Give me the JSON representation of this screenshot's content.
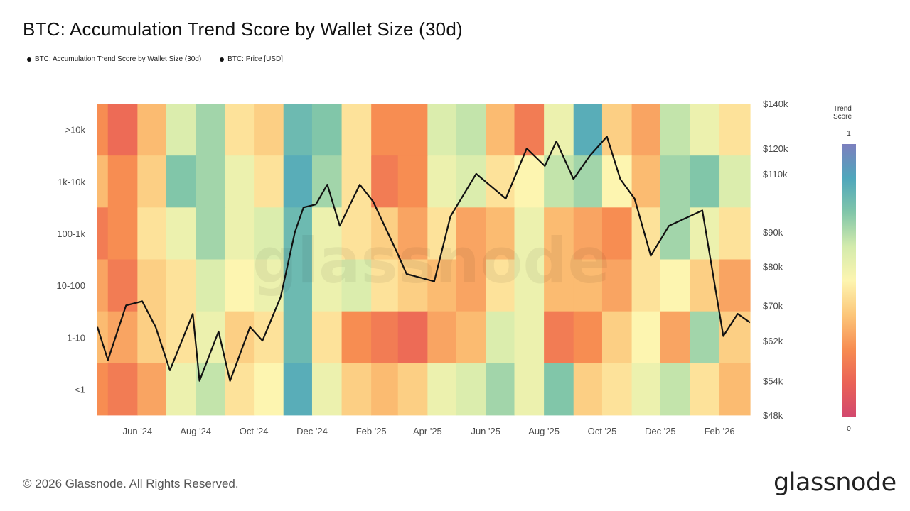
{
  "title": "BTC: Accumulation Trend Score by Wallet Size (30d)",
  "legend": [
    {
      "label": "BTC: Accumulation Trend Score by Wallet Size (30d)"
    },
    {
      "label": "BTC: Price [USD]"
    }
  ],
  "footer": "© 2026 Glassnode. All Rights Reserved.",
  "brand": "glassnode",
  "watermark": "glassnode",
  "chart_data": {
    "type": "heatmap",
    "title": "BTC: Accumulation Trend Score by Wallet Size (30d)",
    "x_range": [
      "2024-04-20",
      "2026-03-05"
    ],
    "x_ticks": [
      {
        "date": "2024-06-01",
        "label": "Jun '24"
      },
      {
        "date": "2024-08-01",
        "label": "Aug '24"
      },
      {
        "date": "2024-10-01",
        "label": "Oct '24"
      },
      {
        "date": "2024-12-01",
        "label": "Dec '24"
      },
      {
        "date": "2025-02-01",
        "label": "Feb '25"
      },
      {
        "date": "2025-04-01",
        "label": "Apr '25"
      },
      {
        "date": "2025-06-01",
        "label": "Jun '25"
      },
      {
        "date": "2025-08-01",
        "label": "Aug '25"
      },
      {
        "date": "2025-10-01",
        "label": "Oct '25"
      },
      {
        "date": "2025-12-01",
        "label": "Dec '25"
      },
      {
        "date": "2026-02-01",
        "label": "Feb '26"
      }
    ],
    "cohorts": [
      ">10k",
      "1k-10k",
      "100-1k",
      "10-100",
      "1-10",
      "<1"
    ],
    "segment_months": [
      "2024-04",
      "2024-05",
      "2024-06",
      "2024-07",
      "2024-08",
      "2024-09",
      "2024-10",
      "2024-11",
      "2024-12",
      "2025-01",
      "2025-02",
      "2025-03",
      "2025-04",
      "2025-05",
      "2025-06",
      "2025-07",
      "2025-08",
      "2025-09",
      "2025-10",
      "2025-11",
      "2025-12",
      "2026-01",
      "2026-02"
    ],
    "trend_score": [
      {
        "cohort": ">10k",
        "values": [
          0.25,
          0.15,
          0.35,
          0.6,
          0.7,
          0.45,
          0.4,
          0.8,
          0.75,
          0.45,
          0.25,
          0.25,
          0.6,
          0.65,
          0.35,
          0.2,
          0.55,
          0.85,
          0.4,
          0.3,
          0.65,
          0.55,
          0.45
        ]
      },
      {
        "cohort": "1k-10k",
        "values": [
          0.35,
          0.25,
          0.4,
          0.75,
          0.7,
          0.55,
          0.45,
          0.85,
          0.7,
          0.45,
          0.2,
          0.25,
          0.55,
          0.6,
          0.45,
          0.5,
          0.65,
          0.7,
          0.5,
          0.35,
          0.7,
          0.75,
          0.6
        ]
      },
      {
        "cohort": "100-1k",
        "values": [
          0.2,
          0.25,
          0.45,
          0.55,
          0.7,
          0.55,
          0.6,
          0.8,
          0.55,
          0.45,
          0.4,
          0.3,
          0.45,
          0.3,
          0.35,
          0.55,
          0.35,
          0.3,
          0.25,
          0.45,
          0.7,
          0.55,
          0.45
        ]
      },
      {
        "cohort": "10-100",
        "values": [
          0.3,
          0.2,
          0.4,
          0.45,
          0.6,
          0.5,
          0.55,
          0.8,
          0.55,
          0.6,
          0.45,
          0.4,
          0.35,
          0.3,
          0.45,
          0.55,
          0.35,
          0.35,
          0.3,
          0.45,
          0.5,
          0.4,
          0.3
        ]
      },
      {
        "cohort": "1-10",
        "values": [
          0.35,
          0.3,
          0.4,
          0.45,
          0.55,
          0.4,
          0.45,
          0.8,
          0.45,
          0.25,
          0.2,
          0.15,
          0.3,
          0.35,
          0.6,
          0.55,
          0.2,
          0.25,
          0.4,
          0.5,
          0.3,
          0.7,
          0.4
        ]
      },
      {
        "cohort": "<1",
        "values": [
          0.25,
          0.2,
          0.3,
          0.55,
          0.65,
          0.45,
          0.5,
          0.85,
          0.55,
          0.4,
          0.35,
          0.4,
          0.55,
          0.6,
          0.7,
          0.55,
          0.75,
          0.4,
          0.45,
          0.55,
          0.65,
          0.45,
          0.35
        ]
      }
    ],
    "price_series": {
      "name": "BTC: Price [USD]",
      "dates": [
        "2024-04-20",
        "2024-05-01",
        "2024-05-20",
        "2024-06-06",
        "2024-06-20",
        "2024-07-05",
        "2024-07-29",
        "2024-08-05",
        "2024-08-25",
        "2024-09-06",
        "2024-09-27",
        "2024-10-10",
        "2024-10-29",
        "2024-11-13",
        "2024-11-22",
        "2024-12-05",
        "2024-12-17",
        "2024-12-30",
        "2025-01-20",
        "2025-02-03",
        "2025-02-28",
        "2025-03-10",
        "2025-04-08",
        "2025-04-25",
        "2025-05-22",
        "2025-06-22",
        "2025-07-14",
        "2025-08-02",
        "2025-08-14",
        "2025-09-01",
        "2025-09-18",
        "2025-10-06",
        "2025-10-20",
        "2025-11-04",
        "2025-11-21",
        "2025-12-10",
        "2026-01-14",
        "2026-02-05",
        "2026-02-20",
        "2026-03-05"
      ],
      "values": [
        65000,
        58000,
        70000,
        71000,
        65000,
        56000,
        68000,
        54000,
        64000,
        54000,
        65000,
        62000,
        72000,
        90000,
        98000,
        99000,
        106000,
        92000,
        106000,
        100000,
        84000,
        78000,
        76000,
        95000,
        110000,
        101000,
        120000,
        113000,
        123000,
        108000,
        117000,
        125000,
        108000,
        101000,
        83000,
        92000,
        97000,
        63000,
        68000,
        66000
      ]
    },
    "y_left_ticks": [
      ">10k",
      "1k-10k",
      "100-1k",
      "10-100",
      "1-10",
      "<1"
    ],
    "y_right_ticks": [
      "$140k",
      "$120k",
      "$110k",
      "$90k",
      "$80k",
      "$70k",
      "$62k",
      "$54k",
      "$48k"
    ],
    "y_right_scale": "log",
    "y_right_range": [
      48000,
      140000
    ],
    "colorbar": {
      "title": [
        "Trend",
        "Score"
      ],
      "max_label": "1",
      "min_label": "0",
      "colors": [
        "#d2486e",
        "#ea6257",
        "#f78d52",
        "#fcc679",
        "#fdf5b0",
        "#d3ebac",
        "#81c6a9",
        "#4fa7bc",
        "#7c7fbe"
      ]
    },
    "grid": false,
    "legend_position": "top-left"
  }
}
